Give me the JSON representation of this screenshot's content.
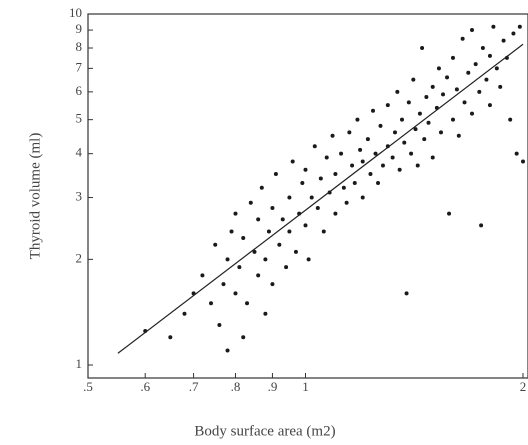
{
  "chart_data": {
    "type": "scatter",
    "xlabel": "Body surface area (m2)",
    "ylabel": "Thyroid volume (ml)",
    "xscale": "log",
    "yscale": "log",
    "xlim": [
      0.5,
      2
    ],
    "ylim": [
      1,
      10
    ],
    "xticks": [
      {
        "value": 0.5,
        "label": ".5"
      },
      {
        "value": 0.6,
        "label": ".6"
      },
      {
        "value": 0.7,
        "label": ".7"
      },
      {
        "value": 0.8,
        "label": ".8"
      },
      {
        "value": 0.9,
        "label": ".9"
      },
      1,
      2
    ],
    "yticks": [
      1,
      2,
      3,
      4,
      5,
      6,
      7,
      8,
      9,
      10
    ],
    "color": "#1a1a1a",
    "x": [
      0.6,
      0.65,
      0.68,
      0.7,
      0.72,
      0.74,
      0.75,
      0.76,
      0.77,
      0.78,
      0.78,
      0.79,
      0.8,
      0.8,
      0.81,
      0.82,
      0.82,
      0.83,
      0.84,
      0.85,
      0.86,
      0.86,
      0.87,
      0.88,
      0.88,
      0.89,
      0.9,
      0.9,
      0.91,
      0.92,
      0.93,
      0.94,
      0.95,
      0.95,
      0.96,
      0.97,
      0.98,
      0.99,
      1.0,
      1.0,
      1.01,
      1.02,
      1.03,
      1.04,
      1.05,
      1.06,
      1.07,
      1.08,
      1.09,
      1.1,
      1.1,
      1.12,
      1.13,
      1.14,
      1.15,
      1.16,
      1.17,
      1.18,
      1.19,
      1.2,
      1.2,
      1.22,
      1.23,
      1.24,
      1.25,
      1.26,
      1.27,
      1.28,
      1.3,
      1.3,
      1.32,
      1.33,
      1.34,
      1.35,
      1.36,
      1.37,
      1.38,
      1.39,
      1.4,
      1.41,
      1.42,
      1.43,
      1.44,
      1.45,
      1.46,
      1.47,
      1.48,
      1.5,
      1.5,
      1.52,
      1.53,
      1.54,
      1.55,
      1.57,
      1.58,
      1.6,
      1.6,
      1.62,
      1.63,
      1.65,
      1.66,
      1.68,
      1.7,
      1.7,
      1.72,
      1.74,
      1.75,
      1.76,
      1.78,
      1.8,
      1.8,
      1.82,
      1.84,
      1.86,
      1.88,
      1.9,
      1.92,
      1.94,
      1.96,
      1.98,
      2.0
    ],
    "y": [
      1.25,
      1.2,
      1.4,
      1.6,
      1.8,
      1.5,
      2.2,
      1.3,
      1.7,
      2.0,
      1.1,
      2.4,
      1.6,
      2.7,
      1.9,
      1.2,
      2.3,
      1.5,
      2.9,
      2.1,
      1.8,
      2.6,
      3.2,
      2.0,
      1.4,
      2.4,
      2.8,
      1.7,
      3.5,
      2.2,
      2.6,
      1.9,
      3.0,
      2.4,
      3.8,
      2.1,
      2.7,
      3.3,
      2.5,
      3.6,
      2.0,
      3.0,
      4.2,
      2.8,
      3.4,
      2.4,
      3.9,
      3.1,
      4.5,
      2.7,
      3.5,
      4.0,
      3.2,
      2.9,
      4.6,
      3.7,
      3.3,
      5.0,
      4.1,
      3.0,
      3.8,
      4.4,
      3.5,
      5.3,
      4.0,
      3.3,
      4.8,
      3.7,
      4.2,
      5.5,
      3.9,
      4.6,
      6.0,
      3.6,
      5.0,
      4.3,
      1.6,
      5.6,
      4.0,
      6.5,
      4.7,
      3.7,
      5.2,
      8.0,
      4.4,
      5.8,
      4.9,
      6.2,
      3.9,
      5.4,
      7.0,
      4.6,
      5.9,
      6.6,
      2.7,
      5.0,
      7.5,
      6.1,
      4.5,
      8.5,
      5.6,
      6.8,
      5.2,
      9.0,
      7.2,
      6.0,
      2.5,
      8.0,
      6.5,
      7.6,
      5.5,
      9.2,
      7.0,
      6.2,
      8.4,
      7.5,
      5.0,
      8.8,
      4.0,
      9.2,
      3.8
    ],
    "fit": {
      "x": [
        0.55,
        2
      ],
      "y": [
        1.08,
        8.2
      ]
    }
  }
}
